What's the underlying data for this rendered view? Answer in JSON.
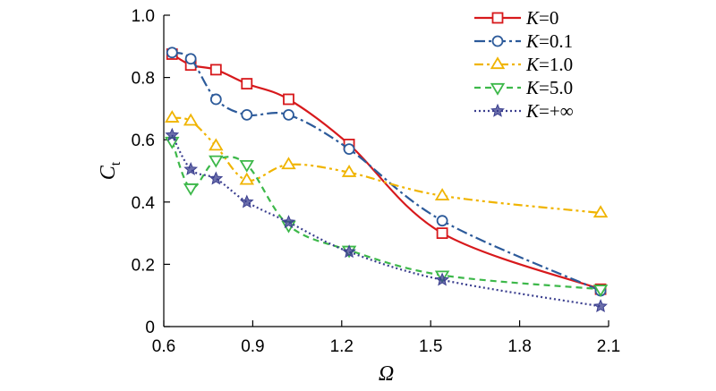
{
  "chart_data": {
    "type": "line",
    "xlabel": "Ω",
    "ylabel": {
      "main": "C",
      "sub": "t"
    },
    "xlim": [
      0.6,
      2.1
    ],
    "ylim": [
      0,
      1.0
    ],
    "xticks": [
      "0.6",
      "0.9",
      "1.2",
      "1.5",
      "1.8",
      "2.1"
    ],
    "yticks": [
      "0",
      "0.2",
      "0.4",
      "0.6",
      "0.8",
      "1.0"
    ],
    "grid": false,
    "legend_position": "top-right",
    "series": [
      {
        "name": "K=0",
        "label_var": "K",
        "label_val": "=0",
        "color": "#d7191c",
        "dash": "",
        "marker": "square",
        "x": [
          0.628,
          0.691,
          0.776,
          0.88,
          1.021,
          1.225,
          1.539,
          2.073
        ],
        "y": [
          0.875,
          0.84,
          0.825,
          0.78,
          0.73,
          0.585,
          0.3,
          0.12
        ]
      },
      {
        "name": "K=0.1",
        "label_var": "K",
        "label_val": "=0.1",
        "color": "#2c5a9a",
        "dash": "12 4 3 4",
        "marker": "circle",
        "x": [
          0.628,
          0.691,
          0.776,
          0.88,
          1.021,
          1.225,
          1.539,
          2.073
        ],
        "y": [
          0.88,
          0.86,
          0.73,
          0.68,
          0.68,
          0.57,
          0.34,
          0.115
        ]
      },
      {
        "name": "K=1.0",
        "label_var": "K",
        "label_val": "=1.0",
        "color": "#f0b400",
        "dash": "10 4 3 4 3 4",
        "marker": "triangle-up",
        "x": [
          0.628,
          0.691,
          0.776,
          0.88,
          1.021,
          1.225,
          1.539,
          2.073
        ],
        "y": [
          0.67,
          0.66,
          0.58,
          0.47,
          0.52,
          0.495,
          0.42,
          0.365
        ]
      },
      {
        "name": "K=5.0",
        "label_var": "K",
        "label_val": "=5.0",
        "color": "#3db84a",
        "dash": "7 5",
        "marker": "triangle-down",
        "x": [
          0.628,
          0.691,
          0.776,
          0.88,
          1.021,
          1.225,
          1.539,
          2.073
        ],
        "y": [
          0.595,
          0.445,
          0.535,
          0.52,
          0.325,
          0.245,
          0.165,
          0.12
        ]
      },
      {
        "name": "K=+∞",
        "label_var": "K",
        "label_val": "=+∞",
        "color": "#3b3f8f",
        "dash": "2 3",
        "marker": "star",
        "x": [
          0.628,
          0.691,
          0.776,
          0.88,
          1.021,
          1.225,
          1.539,
          2.073
        ],
        "y": [
          0.615,
          0.505,
          0.475,
          0.4,
          0.335,
          0.24,
          0.15,
          0.065
        ]
      }
    ]
  }
}
